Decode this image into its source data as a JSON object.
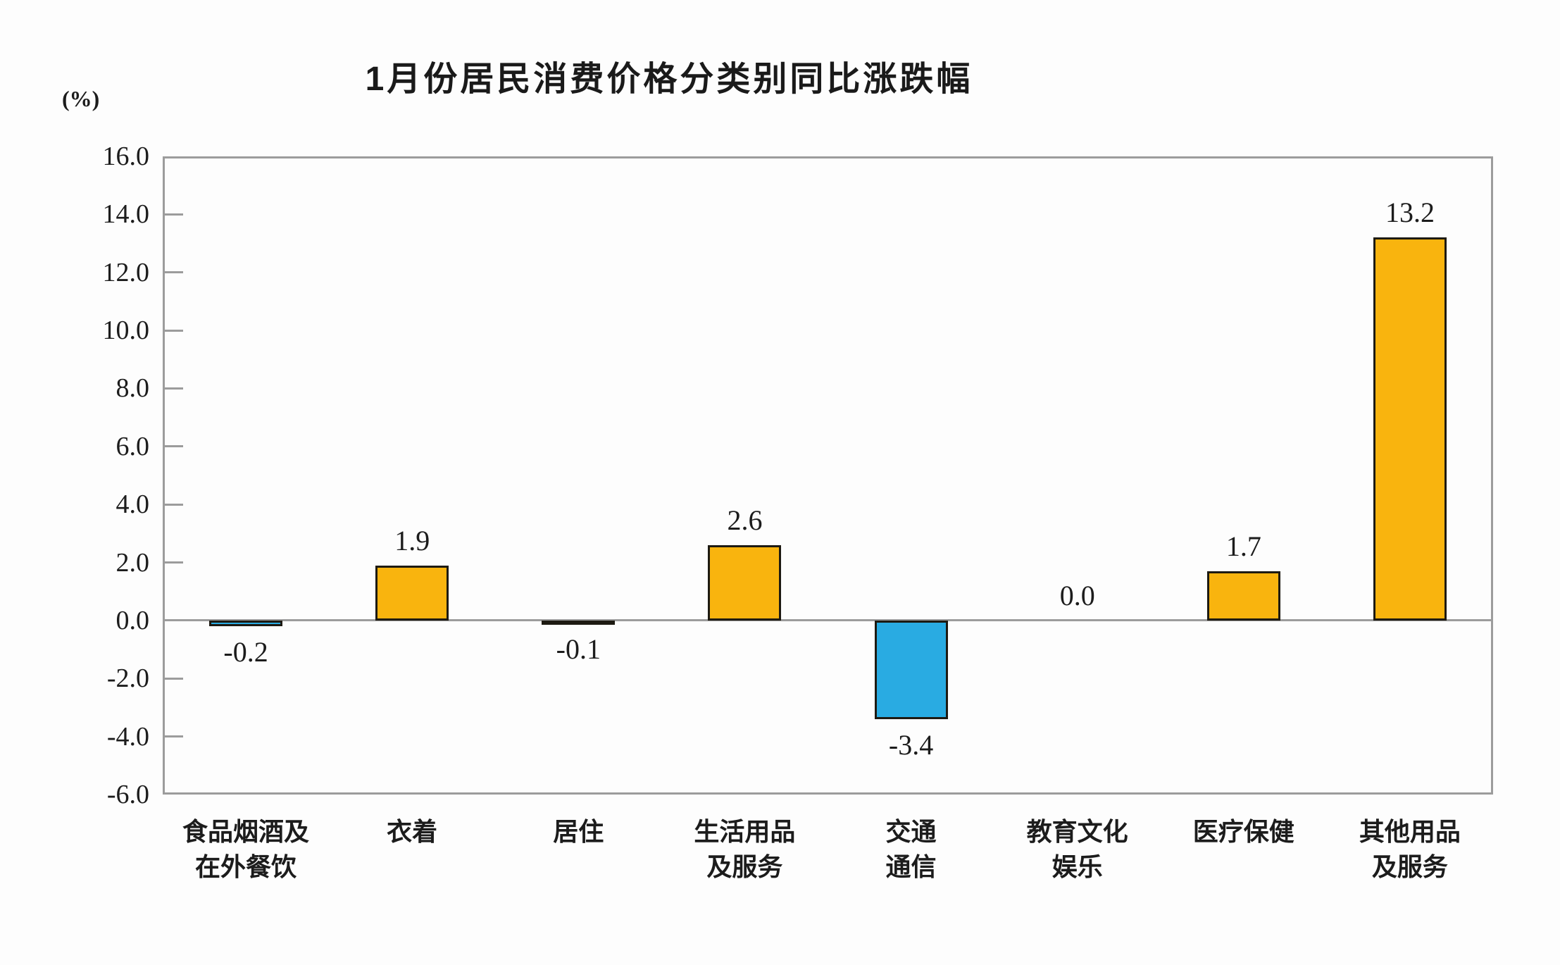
{
  "chart_data": {
    "type": "bar",
    "title": "1月份居民消费价格分类别同比涨跌幅",
    "unit_label": "(%)",
    "categories": [
      "食品烟酒及\n在外餐饮",
      "衣着",
      "居住",
      "生活用品\n及服务",
      "交通\n通信",
      "教育文化\n娱乐",
      "医疗保健",
      "其他用品\n及服务"
    ],
    "values": [
      -0.2,
      1.9,
      -0.1,
      2.6,
      -3.4,
      0.0,
      1.7,
      13.2
    ],
    "value_labels": [
      "-0.2",
      "1.9",
      "-0.1",
      "2.6",
      "-3.4",
      "0.0",
      "1.7",
      "13.2"
    ],
    "ylim": [
      -6.0,
      16.0
    ],
    "ytick_step": 2.0,
    "ytick_labels": [
      "16.0",
      "14.0",
      "12.0",
      "10.0",
      "8.0",
      "6.0",
      "4.0",
      "2.0",
      "0.0",
      "-2.0",
      "-4.0",
      "-6.0"
    ],
    "grid": false,
    "legend": "none",
    "colors": {
      "positive_bar": "#F9B40E",
      "negative_bar": "#29ABE2",
      "bar_border": "#1d1a12",
      "axis": "#9c9c9c",
      "text": "#1c1c1c"
    }
  }
}
